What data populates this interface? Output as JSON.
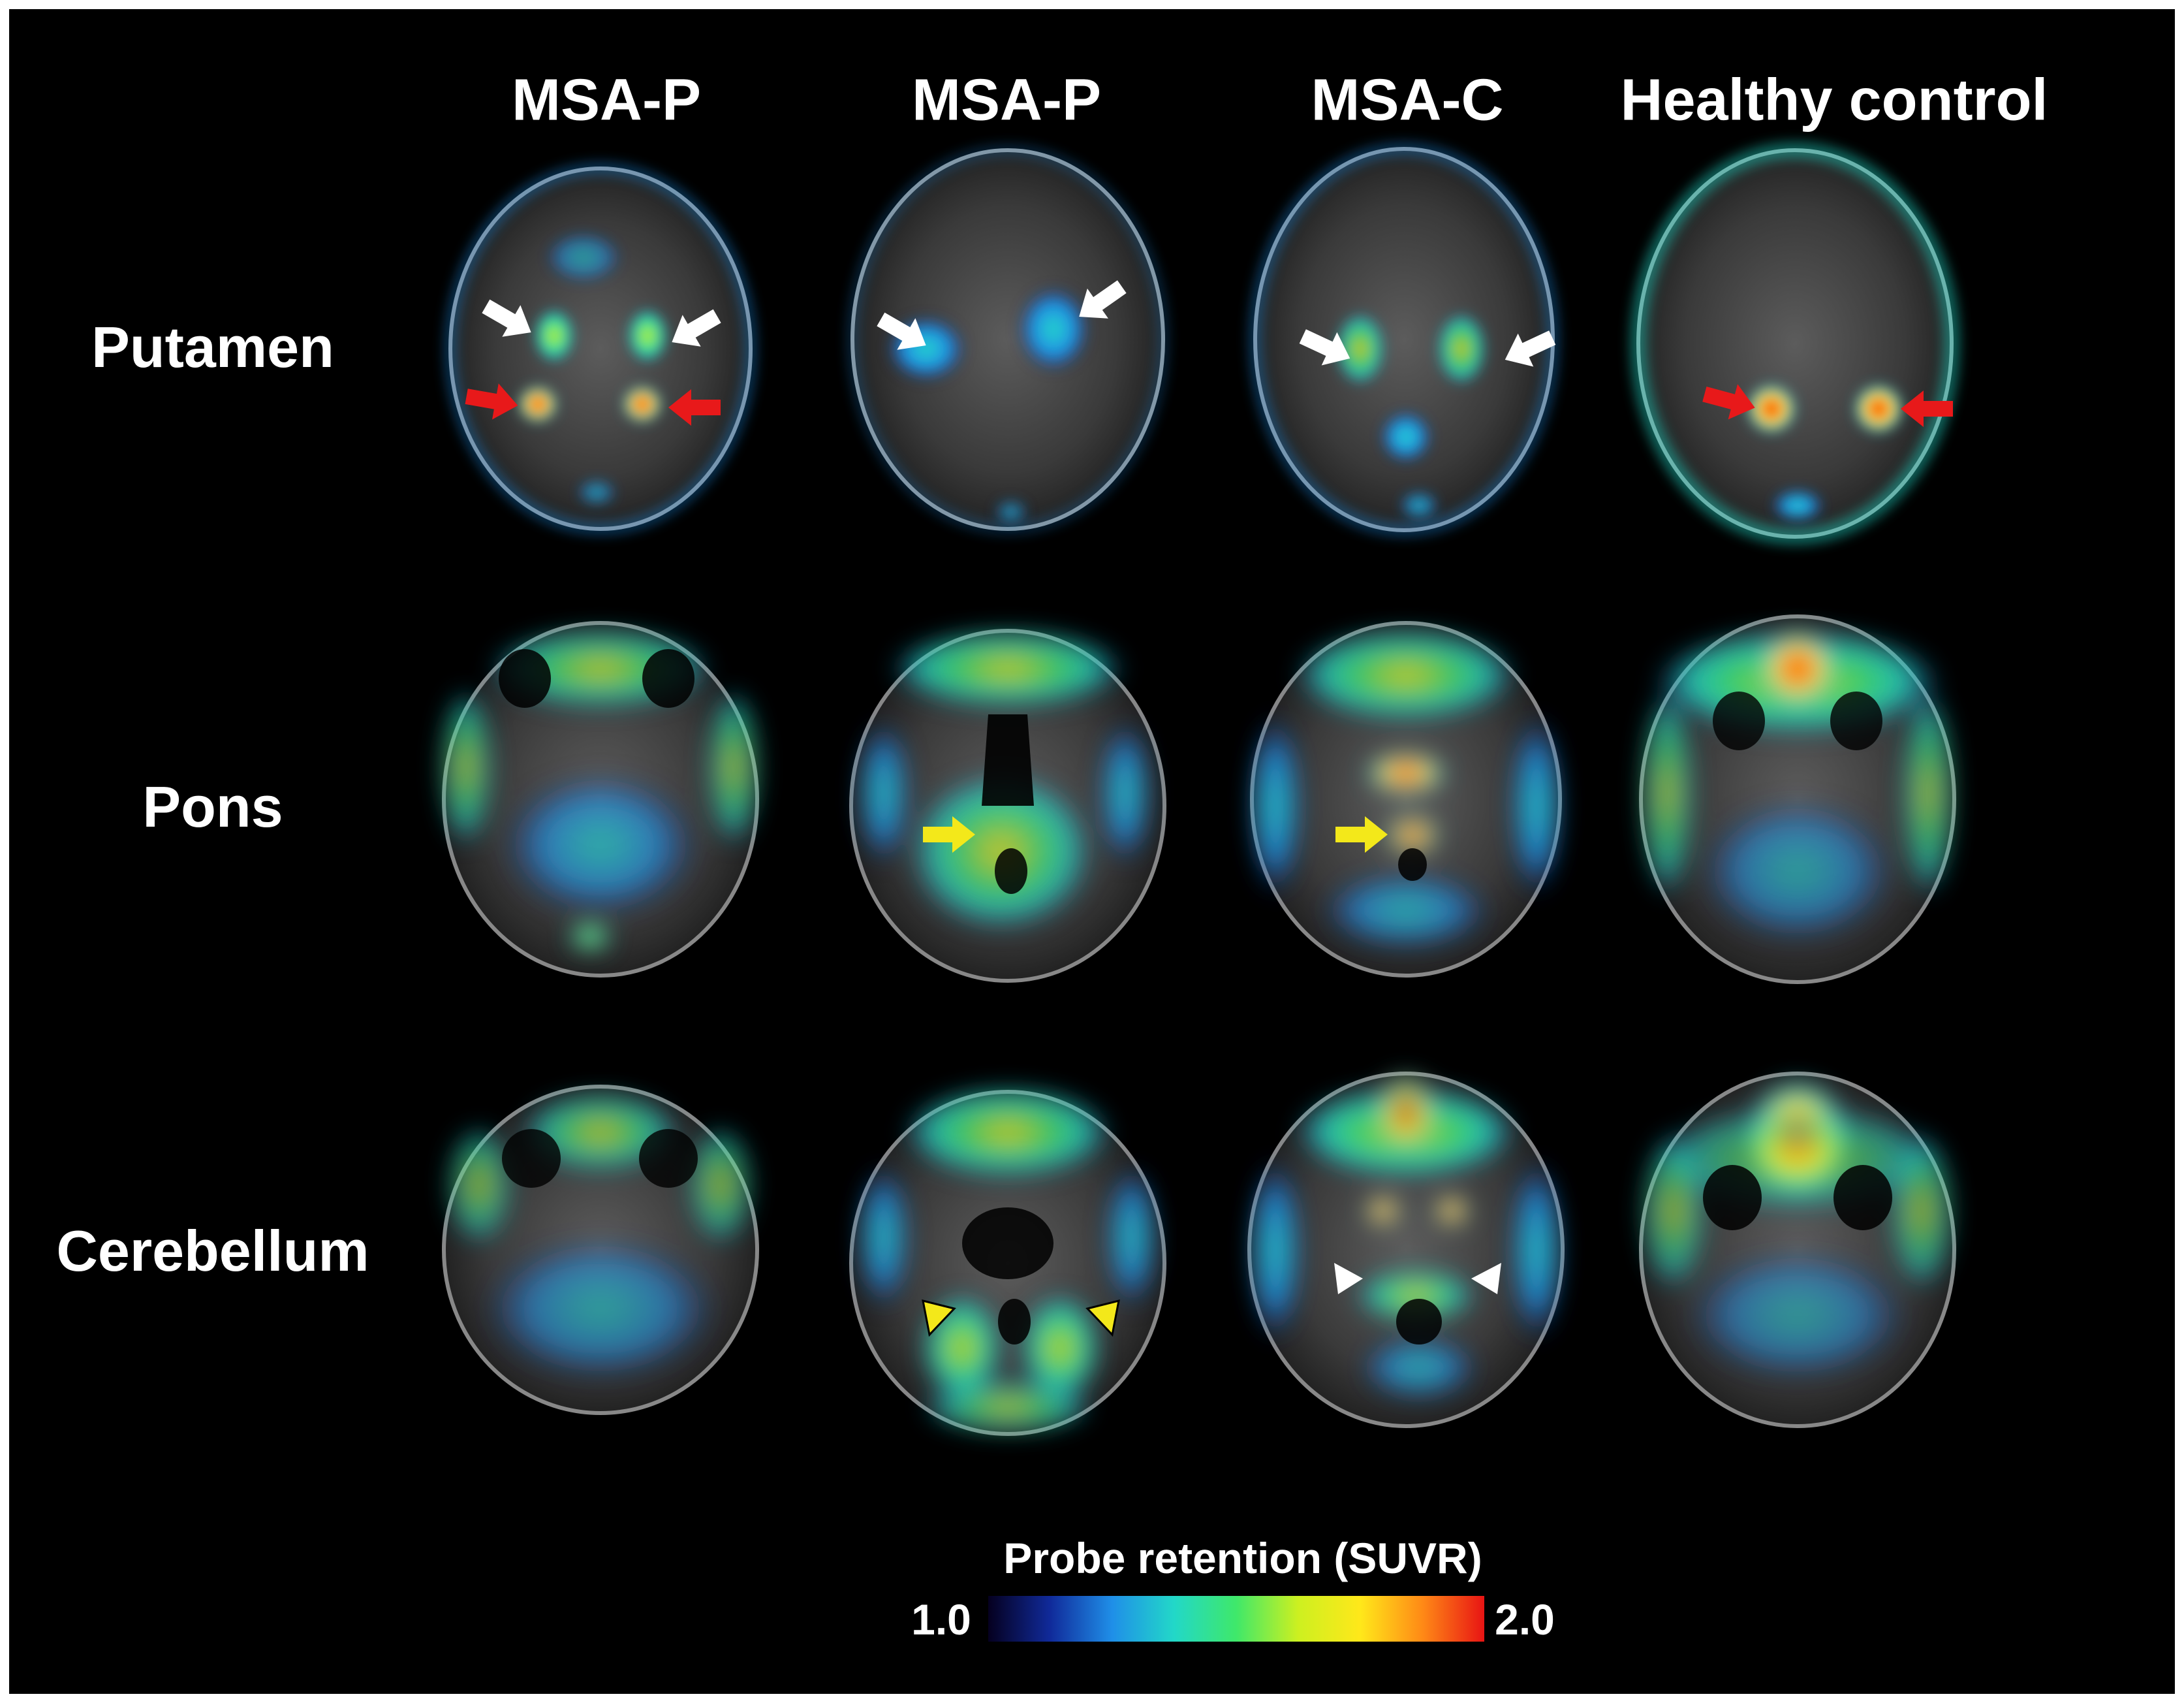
{
  "columns": [
    {
      "label": "MSA-P"
    },
    {
      "label": "MSA-P"
    },
    {
      "label": "MSA-C"
    },
    {
      "label": "Healthy control"
    }
  ],
  "rows": [
    {
      "label": "Putamen"
    },
    {
      "label": "Pons"
    },
    {
      "label": "Cerebellum"
    }
  ],
  "colorbar": {
    "title": "Probe retention (SUVR)",
    "min_label": "1.0",
    "max_label": "2.0",
    "min": 1.0,
    "max": 2.0,
    "colors": [
      "#05001f",
      "#102a9a",
      "#1f8fe8",
      "#22d8c8",
      "#3fe86a",
      "#cdf020",
      "#ffe81a",
      "#ff8a16",
      "#e81414"
    ]
  },
  "annotation_colors": {
    "white": "#ffffff",
    "red": "#e8191a",
    "yellow": "#f3e81a"
  }
}
